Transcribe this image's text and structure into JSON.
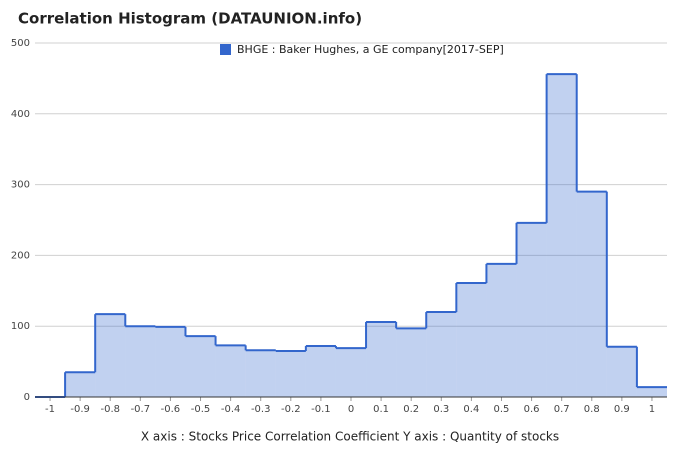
{
  "chart_data": {
    "type": "histogram",
    "title": "Correlation Histogram (DATAUNION.info)",
    "x_label": "X axis : Stocks Price Correlation Coefficient  Y axis : Quantity of stocks",
    "series_name": "BHGE : Baker Hughes, a GE company[2017-SEP]",
    "color": "#3366cc",
    "bins": [
      -1.05,
      -0.95,
      -0.85,
      -0.75,
      -0.65,
      -0.55,
      -0.45,
      -0.35,
      -0.25,
      -0.15,
      -0.05,
      0.05,
      0.15,
      0.25,
      0.35,
      0.45,
      0.55,
      0.65,
      0.75,
      0.85,
      0.95,
      1.05
    ],
    "values": [
      0,
      35,
      117,
      100,
      99,
      86,
      73,
      66,
      65,
      72,
      69,
      106,
      97,
      120,
      161,
      188,
      246,
      456,
      290,
      71,
      14
    ],
    "xlim": [
      -1.05,
      1.05
    ],
    "xticks": [
      -1,
      -0.9,
      -0.8,
      -0.7,
      -0.6,
      -0.5,
      -0.4,
      -0.3,
      -0.2,
      -0.1,
      0,
      0.1,
      0.2,
      0.3,
      0.4,
      0.5,
      0.6,
      0.7,
      0.8,
      0.9,
      1
    ],
    "ylim": [
      0,
      500
    ],
    "yticks": [
      0,
      100,
      200,
      300,
      400,
      500
    ],
    "grid": true,
    "legend": "top"
  }
}
